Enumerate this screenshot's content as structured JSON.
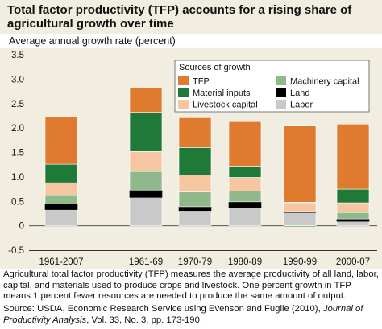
{
  "header": {
    "title": "Total factor productivity (TFP) accounts for a rising share of agricultural growth over time"
  },
  "note": "Agricultural total factor productivity (TFP) measures the average productivity of all land, labor, capital, and materials used to produce crops and livestock. One percent growth in TFP means 1 percent fewer resources are needed to produce the same amount of output.",
  "source": {
    "prefix": "Source: USDA, Economic Research Service using Evenson and Fuglie (2010), ",
    "journal": "Journal of Productivity Analysis",
    "suffix": ", Vol. 33, No. 3, pp. 173-190."
  },
  "chart_data": {
    "type": "bar",
    "stacked": true,
    "ylabel": "Average annual growth rate (percent)",
    "ylim": [
      -0.5,
      3.5
    ],
    "yticks": [
      "-0.5",
      "0",
      "0.5",
      "1.0",
      "1.5",
      "2.0",
      "2.5",
      "3.0",
      "3.5"
    ],
    "categories": [
      "1961-2007",
      "1961-69",
      "1970-79",
      "1980-89",
      "1990-99",
      "2000-07"
    ],
    "legend": {
      "title": "Sources of growth",
      "placement": "top-right"
    },
    "series": [
      {
        "name": "Labor",
        "color": "#c9c9c9",
        "values": [
          0.33,
          0.58,
          0.31,
          0.37,
          0.27,
          0.09
        ]
      },
      {
        "name": "Land",
        "color": "#000000",
        "values": [
          0.12,
          0.15,
          0.08,
          0.12,
          0.02,
          0.05
        ]
      },
      {
        "name": "Machinery capital",
        "color": "#8fb98b",
        "values": [
          0.17,
          0.38,
          0.3,
          0.22,
          -0.03,
          0.13
        ]
      },
      {
        "name": "Livestock capital",
        "color": "#f5c6a0",
        "values": [
          0.26,
          0.41,
          0.35,
          0.28,
          0.18,
          0.2
        ]
      },
      {
        "name": "Material inputs",
        "color": "#1f7a3a",
        "values": [
          0.38,
          0.8,
          0.56,
          0.23,
          0.01,
          0.28
        ]
      },
      {
        "name": "TFP",
        "color": "#e07a2e",
        "values": [
          0.97,
          0.5,
          0.61,
          0.91,
          1.56,
          1.33
        ]
      }
    ]
  }
}
